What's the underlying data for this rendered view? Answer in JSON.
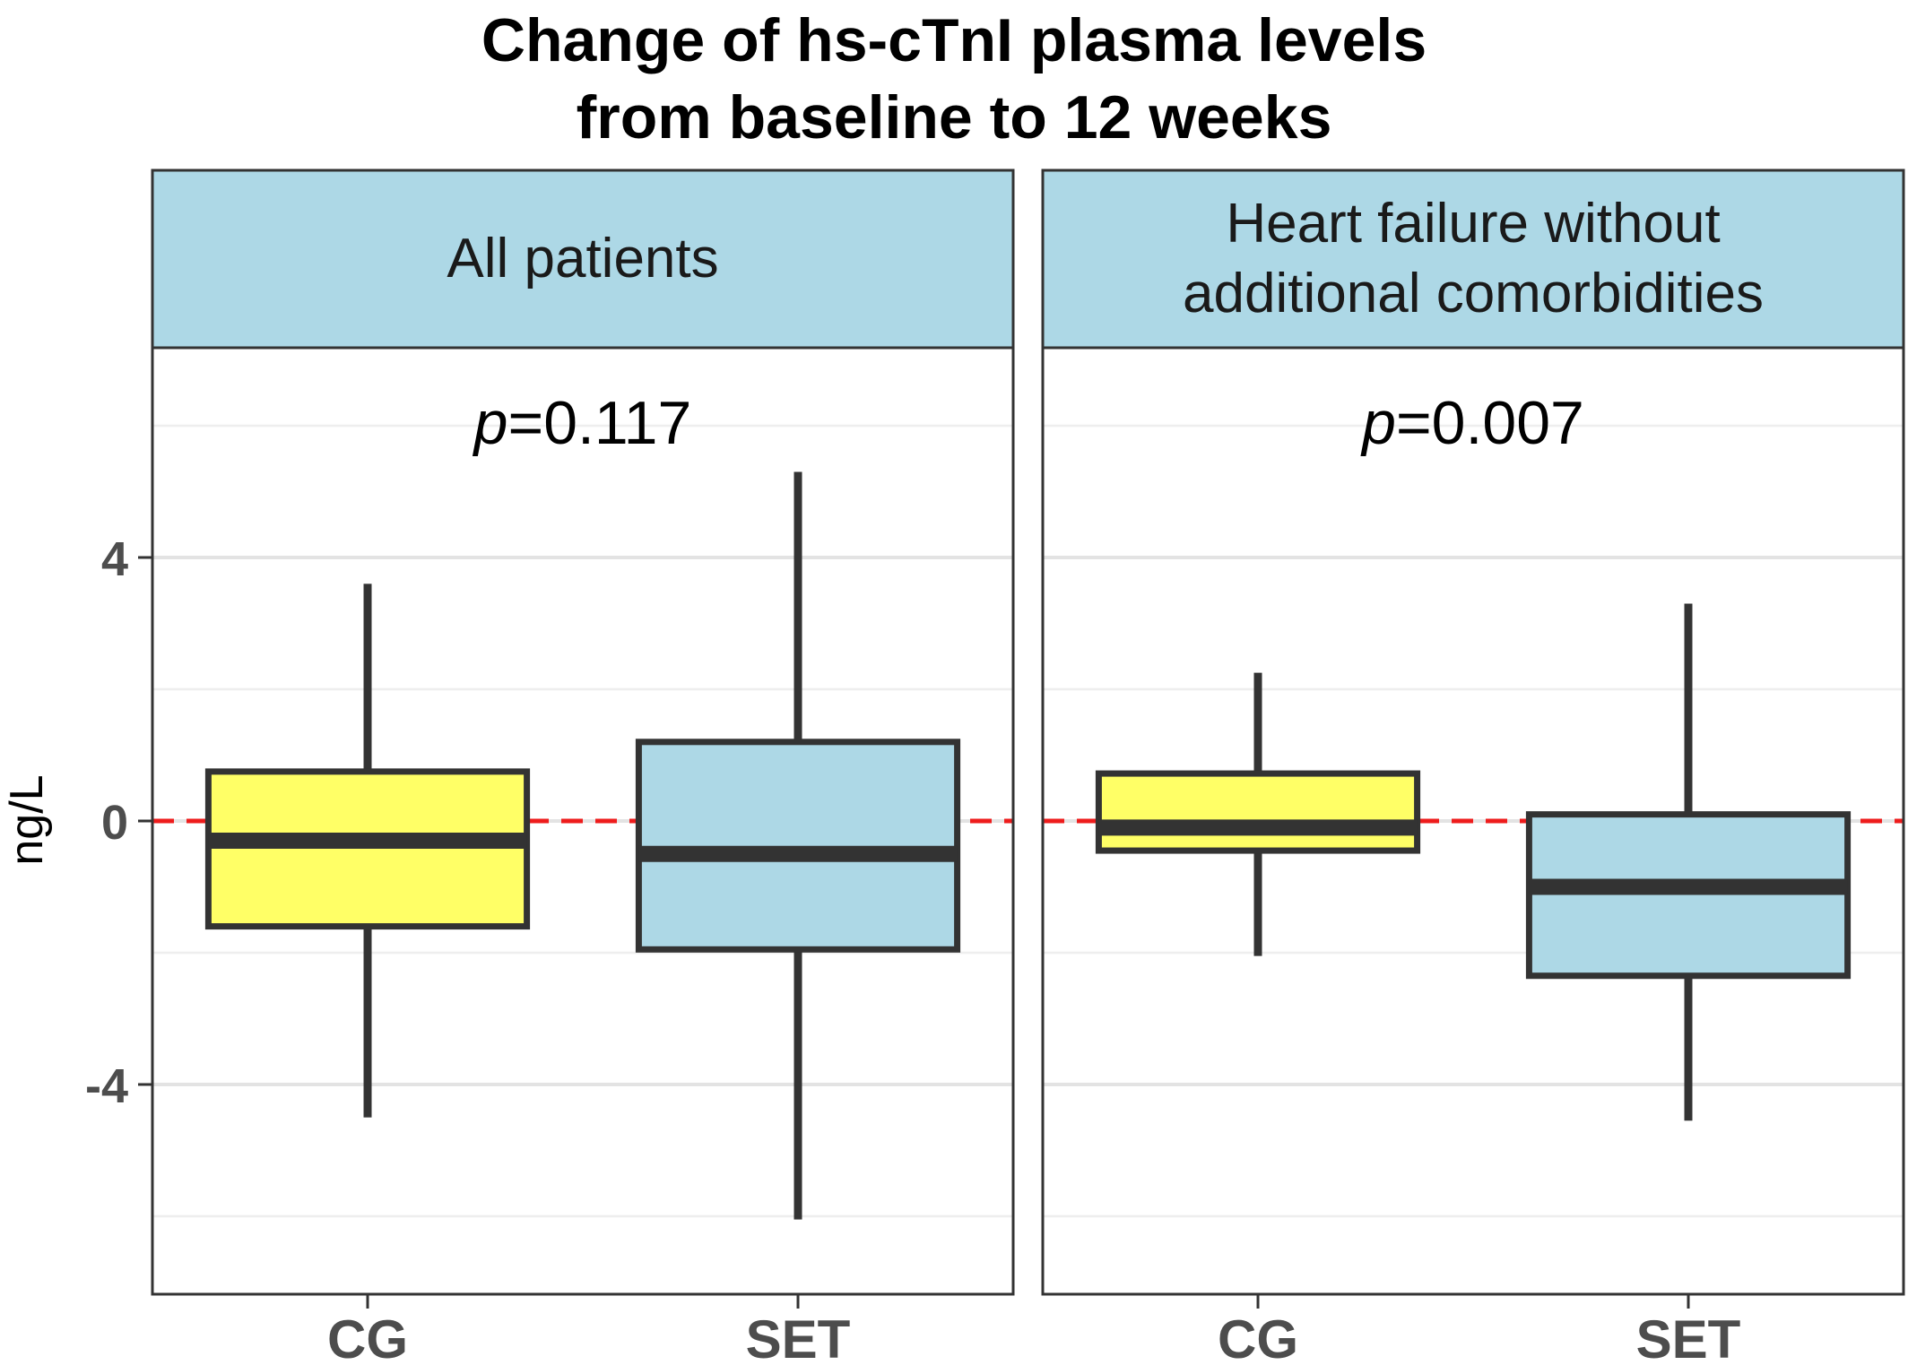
{
  "chart_data": {
    "type": "box",
    "title_lines": [
      "Change of hs-cTnI plasma levels",
      "from baseline to 12 weeks"
    ],
    "ylabel": "ng/L",
    "xlabel": "",
    "ylim": [
      -7.0,
      7.0
    ],
    "yticks": [
      -4,
      0,
      4
    ],
    "ytick_labels": [
      "-4",
      "0",
      "4"
    ],
    "grid": true,
    "reference_line": {
      "y": 0,
      "color": "#ee1c1c",
      "style": "dashed"
    },
    "group_colors": {
      "CG": "#ffff66",
      "SET": "#add8e6"
    },
    "strip_color": "#add8e6",
    "panels": [
      {
        "strip_lines": [
          "All patients"
        ],
        "p_prefix": "p",
        "p_value": "=0.117",
        "categories": [
          "CG",
          "SET"
        ],
        "boxes": [
          {
            "category": "CG",
            "whisker_low": -4.5,
            "q1": -1.6,
            "median": -0.3,
            "q3": 0.75,
            "whisker_high": 3.6
          },
          {
            "category": "SET",
            "whisker_low": -6.05,
            "q1": -1.95,
            "median": -0.5,
            "q3": 1.2,
            "whisker_high": 5.3
          }
        ]
      },
      {
        "strip_lines": [
          "Heart failure without",
          "additional comorbidities"
        ],
        "p_prefix": "p",
        "p_value": "=0.007",
        "categories": [
          "CG",
          "SET"
        ],
        "boxes": [
          {
            "category": "CG",
            "whisker_low": -2.05,
            "q1": -0.45,
            "median": -0.1,
            "q3": 0.72,
            "whisker_high": 2.25
          },
          {
            "category": "SET",
            "whisker_low": -4.55,
            "q1": -2.35,
            "median": -1.0,
            "q3": 0.1,
            "whisker_high": 3.3
          }
        ]
      }
    ]
  }
}
